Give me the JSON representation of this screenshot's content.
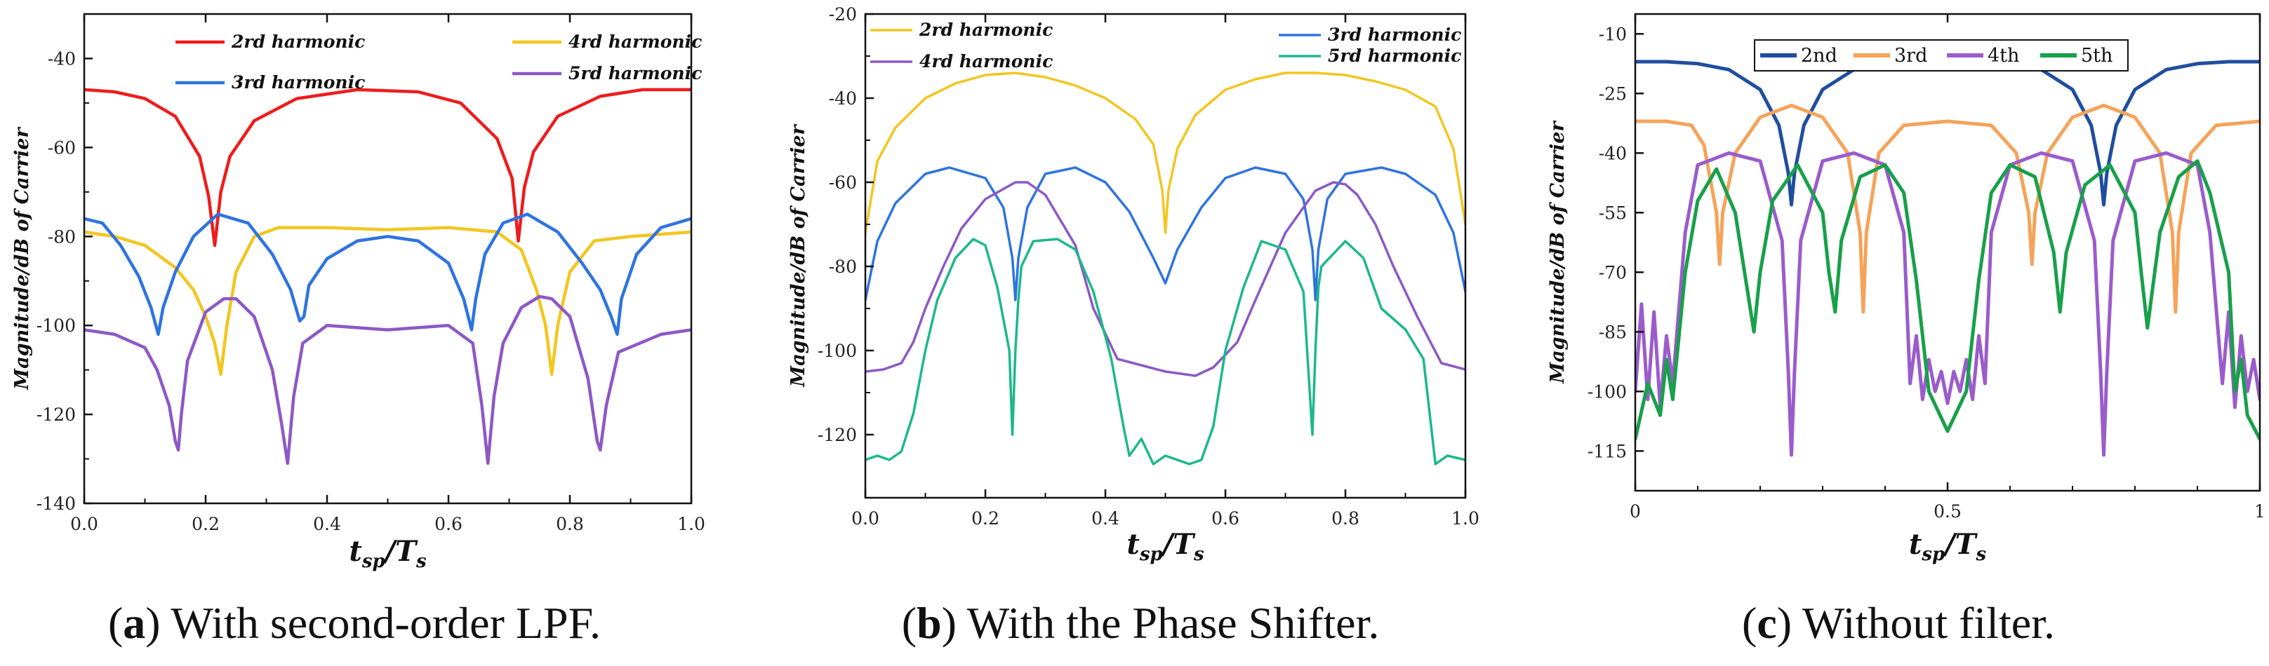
{
  "figure": {
    "captions": [
      {
        "letter": "a",
        "text": "With second-order LPF."
      },
      {
        "letter": "b",
        "text": "With the Phase Shifter."
      },
      {
        "letter": "c",
        "text": "Without filter."
      }
    ]
  },
  "chart_data": [
    {
      "id": "a",
      "type": "line",
      "title": "",
      "xlabel": "tsp/Ts",
      "xlabel_main": "t",
      "xlabel_sub1": "sp",
      "xlabel_mid": "/T",
      "xlabel_sub2": "s",
      "ylabel": "Magnitude/dB of Carrier",
      "xlim": [
        0,
        1
      ],
      "ylim": [
        -140,
        -30
      ],
      "xticks": [
        0,
        0.2,
        0.4,
        0.6,
        0.8,
        1.0
      ],
      "xtick_labels": [
        "0.0",
        "0.2",
        "0.4",
        "0.6",
        "0.8",
        "1.0"
      ],
      "yticks": [
        -140,
        -120,
        -100,
        -80,
        -60,
        -40
      ],
      "ytick_labels": [
        "-140",
        "-120",
        "-100",
        "-80",
        "-60",
        "-40"
      ],
      "legend": [
        "2rd harmonic",
        "4rd harmonic",
        "3rd harmonic",
        "5rd harmonic"
      ],
      "series": [
        {
          "name": "2rd harmonic",
          "color": "#ee1c1c",
          "x": [
            0,
            0.05,
            0.1,
            0.15,
            0.19,
            0.205,
            0.215,
            0.225,
            0.24,
            0.28,
            0.35,
            0.45,
            0.55,
            0.62,
            0.68,
            0.705,
            0.715,
            0.725,
            0.74,
            0.78,
            0.85,
            0.92,
            1.0
          ],
          "y": [
            -47,
            -47.5,
            -49,
            -53,
            -62,
            -71,
            -82,
            -70,
            -62,
            -54,
            -49,
            -47,
            -47.5,
            -50,
            -58,
            -67,
            -81,
            -69,
            -61,
            -53,
            -48.5,
            -47,
            -47
          ]
        },
        {
          "name": "4rd harmonic",
          "color": "#f2c61f",
          "x": [
            0,
            0.05,
            0.1,
            0.15,
            0.18,
            0.2,
            0.215,
            0.225,
            0.235,
            0.25,
            0.28,
            0.32,
            0.4,
            0.5,
            0.6,
            0.68,
            0.72,
            0.745,
            0.76,
            0.77,
            0.78,
            0.8,
            0.84,
            0.9,
            0.95,
            1.0
          ],
          "y": [
            -79,
            -80,
            -82,
            -87,
            -92,
            -98,
            -104,
            -111,
            -100,
            -88,
            -80,
            -78,
            -78,
            -78.5,
            -78,
            -79,
            -83,
            -92,
            -100,
            -111,
            -100,
            -88,
            -81,
            -80,
            -79.5,
            -79
          ]
        },
        {
          "name": "3rd harmonic",
          "color": "#2e74e0",
          "x": [
            0,
            0.03,
            0.06,
            0.09,
            0.11,
            0.122,
            0.13,
            0.15,
            0.18,
            0.22,
            0.27,
            0.31,
            0.34,
            0.355,
            0.362,
            0.37,
            0.4,
            0.45,
            0.5,
            0.55,
            0.6,
            0.625,
            0.638,
            0.645,
            0.66,
            0.69,
            0.73,
            0.78,
            0.82,
            0.85,
            0.868,
            0.878,
            0.885,
            0.91,
            0.95,
            1.0
          ],
          "y": [
            -76,
            -77,
            -82,
            -89,
            -96,
            -102,
            -96,
            -88,
            -80,
            -75,
            -77,
            -84,
            -92,
            -99,
            -98,
            -91,
            -85,
            -81,
            -80,
            -81,
            -86,
            -94,
            -101,
            -94,
            -84,
            -77,
            -75,
            -79,
            -86,
            -92,
            -98,
            -102,
            -94,
            -84,
            -78,
            -76
          ]
        },
        {
          "name": "5rd harmonic",
          "color": "#8d58c6",
          "x": [
            0,
            0.05,
            0.1,
            0.12,
            0.14,
            0.15,
            0.155,
            0.16,
            0.17,
            0.2,
            0.23,
            0.25,
            0.28,
            0.31,
            0.325,
            0.335,
            0.345,
            0.36,
            0.4,
            0.5,
            0.6,
            0.64,
            0.655,
            0.665,
            0.675,
            0.69,
            0.72,
            0.75,
            0.77,
            0.8,
            0.83,
            0.845,
            0.85,
            0.86,
            0.88,
            0.95,
            1.0
          ],
          "y": [
            -101,
            -102,
            -105,
            -110,
            -118,
            -126,
            -128,
            -120,
            -108,
            -97,
            -94,
            -94,
            -98,
            -110,
            -122,
            -131,
            -116,
            -104,
            -100,
            -101,
            -100,
            -104,
            -118,
            -131,
            -116,
            -104,
            -96,
            -93.5,
            -94,
            -98,
            -112,
            -126,
            -128,
            -118,
            -106,
            -102,
            -101
          ]
        }
      ]
    },
    {
      "id": "b",
      "type": "line",
      "title": "",
      "xlabel": "tsp/Ts",
      "xlabel_main": "t",
      "xlabel_sub1": "sp",
      "xlabel_mid": "/T",
      "xlabel_sub2": "s",
      "ylabel": "Magnitude/dB of Carrier",
      "xlim": [
        0,
        1
      ],
      "ylim": [
        -135,
        -20
      ],
      "xticks": [
        0,
        0.2,
        0.4,
        0.6,
        0.8,
        1.0
      ],
      "xtick_labels": [
        "0.0",
        "0.2",
        "0.4",
        "0.6",
        "0.8",
        "1.0"
      ],
      "yticks": [
        -120,
        -100,
        -80,
        -60,
        -40,
        -20
      ],
      "ytick_labels": [
        "-120",
        "-100",
        "-80",
        "-60",
        "-40",
        "-20"
      ],
      "legend": [
        "2rd harmonic",
        "3rd harmonic",
        "4rd harmonic",
        "5rd harmonic"
      ],
      "series": [
        {
          "name": "2rd harmonic",
          "color": "#f2c61f",
          "x": [
            0,
            0.02,
            0.05,
            0.1,
            0.15,
            0.2,
            0.25,
            0.3,
            0.35,
            0.4,
            0.45,
            0.48,
            0.495,
            0.5,
            0.505,
            0.52,
            0.55,
            0.6,
            0.65,
            0.7,
            0.75,
            0.8,
            0.85,
            0.9,
            0.95,
            0.98,
            1.0
          ],
          "y": [
            -72,
            -55,
            -47,
            -40,
            -36.5,
            -34.5,
            -34,
            -35,
            -37,
            -40,
            -45,
            -51,
            -62,
            -72,
            -62,
            -52,
            -44,
            -38,
            -35.5,
            -34,
            -34,
            -34.5,
            -36,
            -38,
            -42,
            -52,
            -70
          ]
        },
        {
          "name": "3rd harmonic",
          "color": "#2e74e0",
          "x": [
            0,
            0.02,
            0.05,
            0.1,
            0.14,
            0.2,
            0.23,
            0.245,
            0.25,
            0.255,
            0.27,
            0.3,
            0.35,
            0.4,
            0.44,
            0.48,
            0.5,
            0.52,
            0.56,
            0.6,
            0.65,
            0.7,
            0.73,
            0.745,
            0.75,
            0.755,
            0.77,
            0.8,
            0.86,
            0.9,
            0.95,
            0.98,
            1.0
          ],
          "y": [
            -88,
            -74,
            -65,
            -58,
            -56.5,
            -59,
            -66,
            -78,
            -88,
            -78,
            -66,
            -58,
            -56.5,
            -60,
            -67,
            -78,
            -84,
            -76,
            -66,
            -59,
            -56.5,
            -58,
            -64,
            -76,
            -88,
            -76,
            -64,
            -58,
            -56.5,
            -58,
            -63,
            -72,
            -86
          ]
        },
        {
          "name": "4rd harmonic",
          "color": "#8d58c6",
          "x": [
            0,
            0.03,
            0.06,
            0.08,
            0.1,
            0.13,
            0.16,
            0.2,
            0.25,
            0.27,
            0.3,
            0.35,
            0.38,
            0.42,
            0.46,
            0.5,
            0.55,
            0.58,
            0.62,
            0.65,
            0.7,
            0.75,
            0.78,
            0.8,
            0.82,
            0.85,
            0.88,
            0.92,
            0.96,
            1.0
          ],
          "y": [
            -105,
            -104.5,
            -103,
            -98,
            -90,
            -80,
            -71,
            -64,
            -60,
            -60,
            -63,
            -75,
            -90,
            -102,
            -103.5,
            -105,
            -106,
            -104,
            -98,
            -88,
            -72,
            -62,
            -60,
            -60.5,
            -63,
            -70,
            -80,
            -92,
            -103,
            -104.5
          ]
        },
        {
          "name": "5rd harmonic",
          "color": "#1db88b",
          "x": [
            0,
            0.02,
            0.04,
            0.06,
            0.08,
            0.1,
            0.12,
            0.15,
            0.18,
            0.2,
            0.22,
            0.24,
            0.245,
            0.25,
            0.255,
            0.26,
            0.28,
            0.32,
            0.35,
            0.38,
            0.41,
            0.43,
            0.44,
            0.46,
            0.48,
            0.5,
            0.52,
            0.54,
            0.56,
            0.58,
            0.6,
            0.63,
            0.66,
            0.7,
            0.73,
            0.745,
            0.75,
            0.755,
            0.76,
            0.8,
            0.83,
            0.86,
            0.9,
            0.93,
            0.95,
            0.97,
            1.0
          ],
          "y": [
            -126,
            -125,
            -126,
            -124,
            -115,
            -100,
            -88,
            -78,
            -73.5,
            -75,
            -85,
            -100,
            -120,
            -100,
            -88,
            -80,
            -74,
            -73.5,
            -76,
            -86,
            -102,
            -118,
            -125,
            -121,
            -127,
            -125,
            -126,
            -127,
            -126,
            -118,
            -100,
            -85,
            -74,
            -76,
            -86,
            -120,
            -100,
            -85,
            -80,
            -74,
            -78,
            -90,
            -95,
            -102,
            -127,
            -125,
            -126
          ]
        }
      ]
    },
    {
      "id": "c",
      "type": "line",
      "title": "",
      "xlabel": "tsp/Ts",
      "xlabel_main": "t",
      "xlabel_sub1": "sp",
      "xlabel_mid": "/T",
      "xlabel_sub2": "s",
      "ylabel": "Magnitude/dB of Carrier",
      "xlim": [
        0,
        1
      ],
      "ylim": [
        -125,
        -5
      ],
      "xticks": [
        0,
        0.5,
        1
      ],
      "xtick_labels": [
        "0",
        "0.5",
        "1"
      ],
      "yticks": [
        -115,
        -100,
        -85,
        -70,
        -55,
        -40,
        -25,
        -10
      ],
      "ytick_labels": [
        "-115",
        "-100",
        "-85",
        "-70",
        "-55",
        "-40",
        "-25",
        "-10"
      ],
      "legend": [
        "2nd",
        "3rd",
        "4th",
        "5th"
      ],
      "series": [
        {
          "name": "2nd",
          "color": "#1f4e9e",
          "x": [
            0,
            0.05,
            0.1,
            0.15,
            0.2,
            0.23,
            0.245,
            0.25,
            0.255,
            0.27,
            0.3,
            0.35,
            0.4,
            0.45,
            0.5,
            0.55,
            0.6,
            0.65,
            0.7,
            0.73,
            0.745,
            0.75,
            0.755,
            0.77,
            0.8,
            0.85,
            0.9,
            0.95,
            1.0
          ],
          "y": [
            -17,
            -17,
            -17.5,
            -19,
            -24,
            -33,
            -45,
            -53,
            -45,
            -33,
            -24,
            -19,
            -17.5,
            -17,
            -17,
            -17,
            -17.5,
            -19,
            -24,
            -33,
            -45,
            -53,
            -45,
            -33,
            -24,
            -19,
            -17.5,
            -17,
            -17
          ]
        },
        {
          "name": "3rd",
          "color": "#f5a35a",
          "x": [
            0,
            0.05,
            0.09,
            0.11,
            0.13,
            0.135,
            0.14,
            0.16,
            0.2,
            0.25,
            0.3,
            0.34,
            0.36,
            0.365,
            0.37,
            0.39,
            0.43,
            0.5,
            0.57,
            0.61,
            0.63,
            0.635,
            0.64,
            0.66,
            0.7,
            0.75,
            0.8,
            0.84,
            0.86,
            0.865,
            0.87,
            0.89,
            0.93,
            1.0
          ],
          "y": [
            -32,
            -32,
            -33,
            -38,
            -55,
            -68,
            -55,
            -40,
            -31,
            -28,
            -31,
            -40,
            -60,
            -80,
            -60,
            -40,
            -33,
            -32,
            -33,
            -40,
            -55,
            -68,
            -55,
            -40,
            -31,
            -28,
            -31,
            -40,
            -60,
            -80,
            -60,
            -40,
            -33,
            -32
          ]
        },
        {
          "name": "4th",
          "color": "#9a5ccb",
          "x": [
            0,
            0.01,
            0.02,
            0.03,
            0.04,
            0.05,
            0.06,
            0.08,
            0.1,
            0.15,
            0.2,
            0.235,
            0.245,
            0.25,
            0.255,
            0.265,
            0.3,
            0.35,
            0.4,
            0.43,
            0.44,
            0.45,
            0.46,
            0.47,
            0.48,
            0.49,
            0.5,
            0.51,
            0.52,
            0.53,
            0.54,
            0.55,
            0.56,
            0.57,
            0.6,
            0.65,
            0.7,
            0.735,
            0.745,
            0.75,
            0.755,
            0.765,
            0.8,
            0.85,
            0.9,
            0.92,
            0.94,
            0.95,
            0.96,
            0.97,
            0.98,
            0.99,
            1.0
          ],
          "y": [
            -100,
            -78,
            -102,
            -80,
            -104,
            -86,
            -98,
            -60,
            -43,
            -40,
            -42,
            -62,
            -95,
            -116,
            -95,
            -62,
            -42,
            -40,
            -43,
            -60,
            -98,
            -86,
            -102,
            -92,
            -100,
            -95,
            -103,
            -95,
            -100,
            -92,
            -102,
            -86,
            -98,
            -60,
            -43,
            -40,
            -42,
            -62,
            -95,
            -116,
            -95,
            -62,
            -42,
            -40,
            -43,
            -60,
            -98,
            -80,
            -104,
            -86,
            -100,
            -92,
            -102
          ]
        },
        {
          "name": "5th",
          "color": "#18a04a",
          "x": [
            0,
            0.02,
            0.04,
            0.05,
            0.06,
            0.08,
            0.1,
            0.13,
            0.16,
            0.18,
            0.19,
            0.2,
            0.22,
            0.26,
            0.3,
            0.31,
            0.32,
            0.33,
            0.36,
            0.4,
            0.43,
            0.45,
            0.47,
            0.5,
            0.53,
            0.55,
            0.57,
            0.6,
            0.64,
            0.67,
            0.68,
            0.69,
            0.72,
            0.76,
            0.8,
            0.81,
            0.82,
            0.84,
            0.87,
            0.9,
            0.92,
            0.95,
            0.96,
            0.97,
            0.98,
            1.0
          ],
          "y": [
            -112,
            -98,
            -106,
            -92,
            -102,
            -70,
            -52,
            -44,
            -55,
            -75,
            -85,
            -70,
            -52,
            -43,
            -55,
            -70,
            -80,
            -62,
            -46,
            -43,
            -50,
            -72,
            -100,
            -110,
            -100,
            -72,
            -50,
            -43,
            -46,
            -65,
            -80,
            -65,
            -48,
            -43,
            -55,
            -70,
            -84,
            -60,
            -46,
            -42,
            -50,
            -70,
            -100,
            -92,
            -106,
            -112
          ]
        }
      ]
    }
  ]
}
